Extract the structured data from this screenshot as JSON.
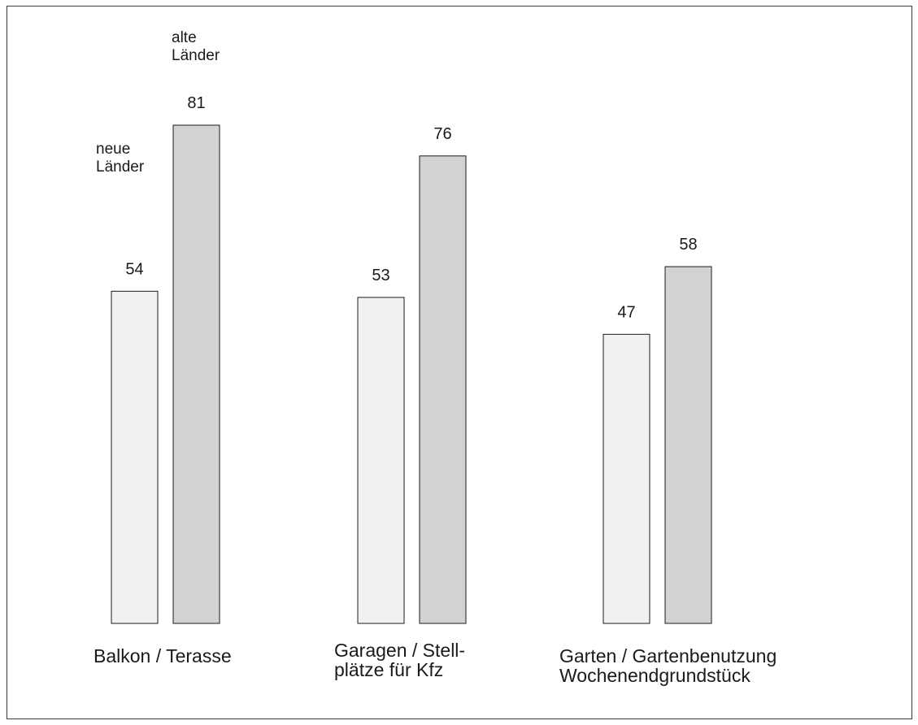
{
  "chart_data": {
    "type": "bar",
    "categories": [
      [
        "Balkon / Terasse"
      ],
      [
        "Garagen / Stell-",
        "plätze für Kfz"
      ],
      [
        "Garten / Gartenbenutzung",
        "Wochenendgrundstück"
      ]
    ],
    "series": [
      {
        "name": [
          "neue",
          "Länder"
        ],
        "color": "#f1f1f2",
        "values": [
          54,
          53,
          47
        ]
      },
      {
        "name": [
          "alte",
          "Länder"
        ],
        "color": "#d1d2d4",
        "values": [
          81,
          76,
          58
        ]
      }
    ],
    "ylim": [
      0,
      81
    ],
    "grid": false,
    "legend": "labels above first group"
  }
}
